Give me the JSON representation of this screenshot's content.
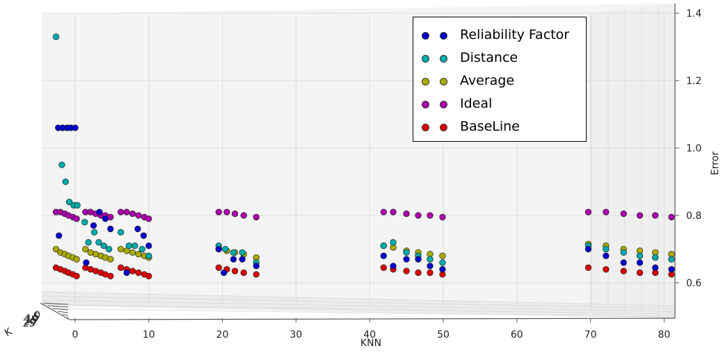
{
  "chart_data": {
    "type": "scatter",
    "xlabel": "KNN",
    "ylabel": "Error",
    "zlabel": "K",
    "x_ticks": [
      "0",
      "10",
      "20",
      "30",
      "40",
      "50",
      "60",
      "70",
      "80"
    ],
    "y_ticks": [
      "0.6",
      "0.8",
      "1.0",
      "1.2",
      "1.4"
    ],
    "depth_ticks": [
      "0",
      "5",
      "10",
      "15",
      "20",
      "25"
    ],
    "xlim": [
      0,
      80
    ],
    "ylim": [
      0.5,
      1.42
    ],
    "grid": true,
    "legend_position": "top-right",
    "series": [
      {
        "name": "Reliability Factor",
        "color": "#0000cc",
        "points": [
          [
            -2.3,
            1.06
          ],
          [
            -1.7,
            1.06
          ],
          [
            -1.1,
            1.06
          ],
          [
            -0.6,
            1.06
          ],
          [
            0,
            1.06
          ],
          [
            -2.2,
            0.74
          ],
          [
            1.5,
            0.66
          ],
          [
            2.5,
            0.77
          ],
          [
            3.3,
            0.81
          ],
          [
            4.1,
            0.79
          ],
          [
            4.8,
            0.76
          ],
          [
            7,
            0.63
          ],
          [
            8.5,
            0.76
          ],
          [
            9.3,
            0.74
          ],
          [
            10,
            0.71
          ],
          [
            19.5,
            0.7
          ],
          [
            20.2,
            0.63
          ],
          [
            21.5,
            0.67
          ],
          [
            22.7,
            0.67
          ],
          [
            24.6,
            0.65
          ],
          [
            41.9,
            0.68
          ],
          [
            43.2,
            0.65
          ],
          [
            45,
            0.67
          ],
          [
            46.6,
            0.67
          ],
          [
            48.2,
            0.65
          ],
          [
            49.9,
            0.64
          ],
          [
            69.7,
            0.7
          ],
          [
            72.1,
            0.68
          ],
          [
            74.5,
            0.66
          ],
          [
            76.7,
            0.66
          ],
          [
            78.8,
            0.645
          ],
          [
            81,
            0.64
          ]
        ]
      },
      {
        "name": "Distance",
        "color": "#00aaaa",
        "points": [
          [
            -2.6,
            1.33
          ],
          [
            -1.8,
            0.95
          ],
          [
            -1.3,
            0.9
          ],
          [
            -0.8,
            0.84
          ],
          [
            -0.2,
            0.83
          ],
          [
            0.3,
            0.83
          ],
          [
            1.3,
            0.78
          ],
          [
            1.8,
            0.72
          ],
          [
            2.6,
            0.75
          ],
          [
            3.2,
            0.72
          ],
          [
            3.9,
            0.71
          ],
          [
            4.6,
            0.7
          ],
          [
            6.2,
            0.75
          ],
          [
            7.3,
            0.71
          ],
          [
            8.1,
            0.71
          ],
          [
            9.1,
            0.7
          ],
          [
            10,
            0.68
          ],
          [
            19.5,
            0.71
          ],
          [
            20.4,
            0.7
          ],
          [
            21.5,
            0.69
          ],
          [
            22.7,
            0.69
          ],
          [
            24.6,
            0.66
          ],
          [
            41.9,
            0.71
          ],
          [
            43.2,
            0.72
          ],
          [
            45,
            0.69
          ],
          [
            46.6,
            0.68
          ],
          [
            48.2,
            0.67
          ],
          [
            49.9,
            0.66
          ],
          [
            69.7,
            0.71
          ],
          [
            72.1,
            0.7
          ],
          [
            74.5,
            0.69
          ],
          [
            76.7,
            0.68
          ],
          [
            78.8,
            0.675
          ],
          [
            81,
            0.67
          ]
        ]
      },
      {
        "name": "Average",
        "color": "#aaaa00",
        "points": [
          [
            -2.6,
            0.7
          ],
          [
            -2,
            0.69
          ],
          [
            -1.4,
            0.685
          ],
          [
            -0.9,
            0.68
          ],
          [
            -0.3,
            0.675
          ],
          [
            0.2,
            0.67
          ],
          [
            1.4,
            0.7
          ],
          [
            2.1,
            0.69
          ],
          [
            2.8,
            0.685
          ],
          [
            3.5,
            0.68
          ],
          [
            4.1,
            0.675
          ],
          [
            4.8,
            0.67
          ],
          [
            6.2,
            0.7
          ],
          [
            7,
            0.695
          ],
          [
            7.8,
            0.69
          ],
          [
            8.6,
            0.685
          ],
          [
            9.4,
            0.68
          ],
          [
            10,
            0.675
          ],
          [
            19.5,
            0.7
          ],
          [
            20.6,
            0.695
          ],
          [
            21.7,
            0.69
          ],
          [
            22.9,
            0.685
          ],
          [
            24.6,
            0.675
          ],
          [
            41.9,
            0.71
          ],
          [
            43.2,
            0.705
          ],
          [
            45,
            0.695
          ],
          [
            46.6,
            0.69
          ],
          [
            48.2,
            0.685
          ],
          [
            49.9,
            0.68
          ],
          [
            69.7,
            0.715
          ],
          [
            72.1,
            0.71
          ],
          [
            74.5,
            0.7
          ],
          [
            76.7,
            0.695
          ],
          [
            78.8,
            0.69
          ],
          [
            81,
            0.685
          ]
        ]
      },
      {
        "name": "Ideal",
        "color": "#aa00aa",
        "points": [
          [
            -2.6,
            0.81
          ],
          [
            -2,
            0.81
          ],
          [
            -1.4,
            0.805
          ],
          [
            -0.9,
            0.8
          ],
          [
            -0.3,
            0.795
          ],
          [
            0.2,
            0.79
          ],
          [
            1.4,
            0.81
          ],
          [
            2.1,
            0.81
          ],
          [
            2.8,
            0.805
          ],
          [
            3.5,
            0.8
          ],
          [
            4.1,
            0.8
          ],
          [
            4.8,
            0.795
          ],
          [
            6.2,
            0.81
          ],
          [
            7,
            0.81
          ],
          [
            7.8,
            0.805
          ],
          [
            8.6,
            0.8
          ],
          [
            9.4,
            0.795
          ],
          [
            10,
            0.79
          ],
          [
            19.5,
            0.81
          ],
          [
            20.6,
            0.81
          ],
          [
            21.7,
            0.805
          ],
          [
            22.9,
            0.8
          ],
          [
            24.6,
            0.795
          ],
          [
            41.9,
            0.81
          ],
          [
            43.2,
            0.81
          ],
          [
            45,
            0.805
          ],
          [
            46.6,
            0.8
          ],
          [
            48.2,
            0.8
          ],
          [
            49.9,
            0.795
          ],
          [
            69.7,
            0.81
          ],
          [
            72.1,
            0.81
          ],
          [
            74.5,
            0.805
          ],
          [
            76.7,
            0.8
          ],
          [
            78.8,
            0.8
          ],
          [
            81,
            0.795
          ]
        ]
      },
      {
        "name": "BaseLine",
        "color": "#dd0000",
        "points": [
          [
            -2.6,
            0.645
          ],
          [
            -2,
            0.64
          ],
          [
            -1.4,
            0.635
          ],
          [
            -0.9,
            0.63
          ],
          [
            -0.3,
            0.625
          ],
          [
            0.2,
            0.62
          ],
          [
            1.4,
            0.645
          ],
          [
            2.1,
            0.64
          ],
          [
            2.8,
            0.635
          ],
          [
            3.5,
            0.63
          ],
          [
            4.1,
            0.625
          ],
          [
            4.8,
            0.62
          ],
          [
            6.2,
            0.645
          ],
          [
            7,
            0.64
          ],
          [
            7.8,
            0.635
          ],
          [
            8.6,
            0.63
          ],
          [
            9.4,
            0.625
          ],
          [
            10,
            0.62
          ],
          [
            19.5,
            0.645
          ],
          [
            20.6,
            0.64
          ],
          [
            21.7,
            0.635
          ],
          [
            22.9,
            0.63
          ],
          [
            24.6,
            0.625
          ],
          [
            41.9,
            0.645
          ],
          [
            43.2,
            0.64
          ],
          [
            45,
            0.635
          ],
          [
            46.6,
            0.63
          ],
          [
            48.2,
            0.63
          ],
          [
            49.9,
            0.625
          ],
          [
            69.7,
            0.645
          ],
          [
            72.1,
            0.64
          ],
          [
            74.5,
            0.635
          ],
          [
            76.7,
            0.63
          ],
          [
            78.8,
            0.63
          ],
          [
            81,
            0.625
          ]
        ]
      }
    ]
  }
}
